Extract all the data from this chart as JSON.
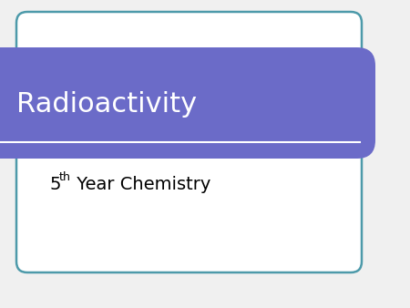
{
  "title": "Radioactivity",
  "subtitle": "5",
  "subtitle_super": "th",
  "subtitle_rest": " Year Chemistry",
  "bg_color": "#f0f0f0",
  "banner_color": "#6B6BC8",
  "banner_text_color": "#ffffff",
  "body_text_color": "#000000",
  "border_color": "#4d9aaa",
  "border_linewidth": 1.8,
  "title_fontsize": 22,
  "subtitle_fontsize": 14,
  "fig_width": 4.5,
  "fig_height": 3.38,
  "dpi": 100
}
